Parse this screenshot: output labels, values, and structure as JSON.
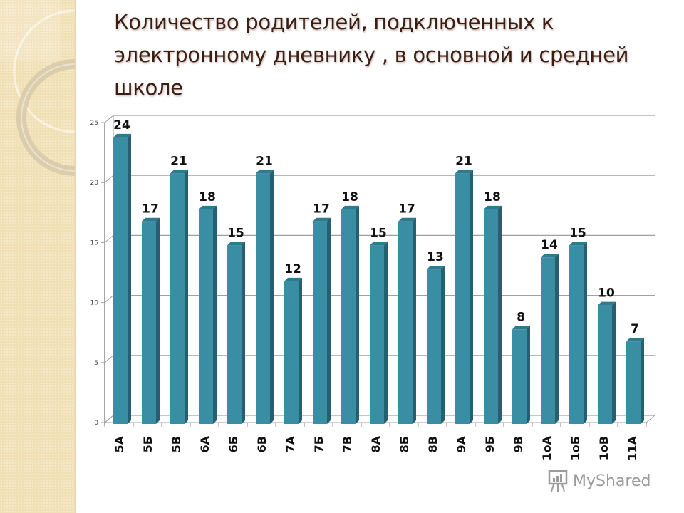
{
  "slide": {
    "title": "Количество родителей,  подключенных к электронному дневнику , в основной и средней школе",
    "watermark": "MyShared"
  },
  "colors": {
    "bar_front": "#3a8ea4",
    "bar_side": "#255f70",
    "bar_top": "#2f7a8e",
    "side_strip": "#f1e0b5",
    "title_text": "#3a1e14",
    "gridline": "#a0a0a0"
  },
  "chart_data": {
    "type": "bar",
    "title": "Количество родителей,  подключенных к электронному дневнику , в основной и средней школе",
    "xlabel": "",
    "ylabel": "",
    "categories": [
      "5А",
      "5Б",
      "5В",
      "6А",
      "6Б",
      "6В",
      "7А",
      "7Б",
      "7В",
      "8А",
      "8Б",
      "8В",
      "9А",
      "9Б",
      "9В",
      "1оА",
      "1оБ",
      "1оВ",
      "11А"
    ],
    "values": [
      24,
      17,
      21,
      18,
      15,
      21,
      12,
      17,
      18,
      15,
      17,
      13,
      21,
      18,
      8,
      14,
      15,
      10,
      7
    ],
    "ylim": [
      0,
      25
    ],
    "yticks": [
      0,
      5,
      10,
      15,
      20,
      25
    ],
    "grid": true,
    "legend": null,
    "data_labels": true,
    "style": "3d-column"
  }
}
